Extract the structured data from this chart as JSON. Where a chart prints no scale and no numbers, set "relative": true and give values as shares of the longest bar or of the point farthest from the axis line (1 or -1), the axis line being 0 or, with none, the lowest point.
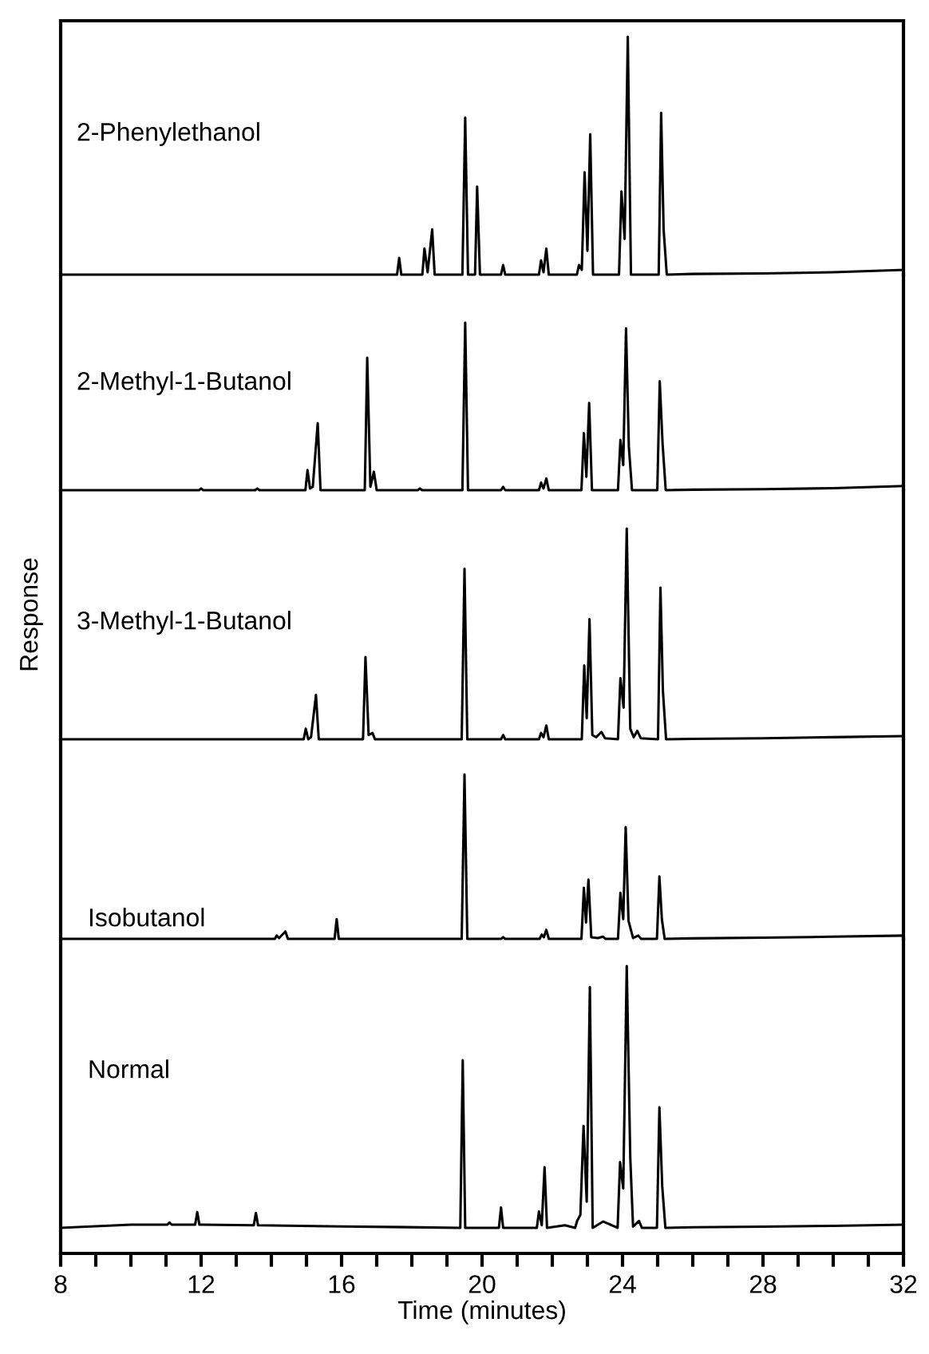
{
  "chart_data": [
    {
      "type": "line",
      "relative": true,
      "xlim": [
        8,
        32
      ],
      "tick_labels": false,
      "marker": "none",
      "line_style": "solid",
      "grid": false,
      "legend": false,
      "series": [
        {
          "name": "2-Phenylethanol",
          "color": "#000000",
          "x": [
            8,
            17.0,
            17.58,
            17.64,
            17.7,
            18.3,
            18.36,
            18.45,
            18.58,
            18.65,
            19.44,
            19.52,
            19.6,
            19.8,
            19.86,
            19.94,
            20.54,
            20.6,
            20.66,
            21.62,
            21.68,
            21.75,
            21.83,
            21.9,
            22.7,
            22.76,
            22.84,
            22.92,
            23.0,
            23.08,
            23.16,
            23.9,
            23.97,
            24.06,
            24.15,
            24.24,
            25.03,
            25.1,
            25.17,
            25.26,
            26,
            28,
            30,
            32
          ],
          "values": [
            0,
            0,
            0,
            0.07,
            0,
            0,
            0.11,
            0.01,
            0.19,
            0,
            0,
            0.66,
            0,
            0,
            0.37,
            0,
            0,
            0.04,
            0,
            0,
            0.06,
            0.01,
            0.11,
            0,
            0,
            0.04,
            0.02,
            0.43,
            0.1,
            0.59,
            0,
            0,
            0.35,
            0.15,
            1.0,
            0,
            0,
            0.68,
            0.19,
            0,
            0.003,
            0.005,
            0.01,
            0.02
          ]
        }
      ]
    },
    {
      "type": "line",
      "relative": true,
      "xlim": [
        8,
        32
      ],
      "tick_labels": false,
      "marker": "none",
      "line_style": "solid",
      "grid": false,
      "legend": false,
      "series": [
        {
          "name": "2-Methyl-1-Butanol",
          "color": "#000000",
          "x": [
            8,
            11.94,
            12.0,
            12.06,
            13.54,
            13.6,
            13.66,
            14.97,
            15.03,
            15.1,
            15.18,
            15.32,
            15.4,
            16.66,
            16.73,
            16.82,
            16.92,
            17.0,
            18.17,
            18.23,
            18.29,
            19.44,
            19.52,
            19.6,
            20.54,
            20.6,
            20.66,
            21.62,
            21.68,
            21.75,
            21.83,
            21.9,
            22.83,
            22.9,
            22.97,
            23.05,
            23.13,
            23.87,
            23.94,
            24.02,
            24.1,
            24.18,
            24.27,
            24.99,
            25.06,
            25.14,
            25.23,
            26,
            28,
            30,
            32
          ],
          "values": [
            0,
            0,
            0.01,
            0,
            0,
            0.01,
            0,
            0,
            0.12,
            0.01,
            0.02,
            0.4,
            0,
            0,
            0.79,
            0.02,
            0.11,
            0,
            0,
            0.01,
            0,
            0,
            1.0,
            0,
            0,
            0.02,
            0,
            0,
            0.045,
            0.01,
            0.07,
            0,
            0,
            0.34,
            0.08,
            0.52,
            0,
            0,
            0.3,
            0.15,
            0.965,
            0.26,
            0,
            0,
            0.65,
            0.28,
            0,
            0.003,
            0.006,
            0.012,
            0.025
          ]
        }
      ]
    },
    {
      "type": "line",
      "relative": true,
      "xlim": [
        8,
        32
      ],
      "tick_labels": false,
      "marker": "none",
      "line_style": "solid",
      "grid": false,
      "legend": false,
      "ylabel": "Response",
      "series": [
        {
          "name": "3-Methyl-1-Butanol",
          "color": "#000000",
          "x": [
            8,
            14.92,
            14.98,
            15.05,
            15.13,
            15.27,
            15.35,
            16.61,
            16.68,
            16.77,
            16.88,
            16.95,
            19.42,
            19.5,
            19.58,
            20.54,
            20.6,
            20.66,
            21.62,
            21.68,
            21.75,
            21.83,
            21.9,
            22.84,
            22.91,
            22.98,
            23.06,
            23.14,
            23.25,
            23.4,
            23.5,
            23.87,
            23.94,
            24.03,
            24.12,
            24.22,
            24.32,
            24.42,
            24.52,
            25.01,
            25.08,
            25.15,
            25.24,
            26,
            28,
            30,
            32
          ],
          "values": [
            0,
            0,
            0.05,
            0,
            0.01,
            0.21,
            0,
            0,
            0.39,
            0.02,
            0.03,
            0,
            0,
            0.81,
            0,
            0,
            0.02,
            0,
            0,
            0.03,
            0.01,
            0.065,
            0,
            0,
            0.35,
            0.1,
            0.57,
            0.02,
            0.01,
            0.035,
            0.005,
            0,
            0.29,
            0.15,
            1.0,
            0.05,
            0.01,
            0.04,
            0.005,
            0,
            0.72,
            0.23,
            0,
            0.002,
            0.005,
            0.01,
            0.015
          ]
        }
      ]
    },
    {
      "type": "line",
      "relative": true,
      "xlim": [
        8,
        32
      ],
      "tick_labels": false,
      "marker": "none",
      "line_style": "solid",
      "grid": false,
      "legend": false,
      "series": [
        {
          "name": "Isobutanol",
          "color": "#000000",
          "x": [
            8,
            14.1,
            14.15,
            14.22,
            14.4,
            14.47,
            15.8,
            15.86,
            15.92,
            19.42,
            19.5,
            19.58,
            20.54,
            20.6,
            20.66,
            21.64,
            21.7,
            21.76,
            21.83,
            21.9,
            22.83,
            22.9,
            22.96,
            23.03,
            23.11,
            23.3,
            23.44,
            23.52,
            23.87,
            23.94,
            24.02,
            24.09,
            24.17,
            24.3,
            24.45,
            24.53,
            24.98,
            25.05,
            25.12,
            25.2,
            26,
            28,
            30,
            32
          ],
          "values": [
            0,
            0,
            0.02,
            0.005,
            0.045,
            0,
            0,
            0.12,
            0,
            0,
            1.0,
            0,
            0,
            0.01,
            0,
            0,
            0.026,
            0.01,
            0.055,
            0,
            0,
            0.31,
            0.1,
            0.36,
            0.01,
            0.005,
            0.013,
            0,
            0,
            0.28,
            0.12,
            0.68,
            0.11,
            0.005,
            0.02,
            0,
            0,
            0.38,
            0.12,
            0,
            0.003,
            0.007,
            0.013,
            0.02
          ]
        }
      ]
    },
    {
      "type": "line",
      "relative": true,
      "xlim": [
        8,
        32
      ],
      "tick_labels": "x",
      "marker": "none",
      "line_style": "solid",
      "grid": false,
      "legend": false,
      "xlabel": "Time (minutes)",
      "xticks": [
        8,
        {
          "value": 9,
          "label": null
        },
        {
          "value": 10,
          "label": null
        },
        {
          "value": 11,
          "label": null
        },
        12,
        {
          "value": 13,
          "label": null
        },
        {
          "value": 14,
          "label": null
        },
        {
          "value": 15,
          "label": null
        },
        16,
        {
          "value": 17,
          "label": null
        },
        {
          "value": 18,
          "label": null
        },
        {
          "value": 19,
          "label": null
        },
        20,
        {
          "value": 21,
          "label": null
        },
        {
          "value": 22,
          "label": null
        },
        {
          "value": 23,
          "label": null
        },
        24,
        {
          "value": 25,
          "label": null
        },
        {
          "value": 26,
          "label": null
        },
        {
          "value": 27,
          "label": null
        },
        28,
        {
          "value": 29,
          "label": null
        },
        {
          "value": 30,
          "label": null
        },
        {
          "value": 31,
          "label": null
        },
        32
      ],
      "series": [
        {
          "name": "Normal",
          "color": "#000000",
          "x": [
            8,
            10,
            11.04,
            11.1,
            11.16,
            11.83,
            11.89,
            11.95,
            13.5,
            13.56,
            13.62,
            16,
            19.38,
            19.45,
            19.52,
            20.48,
            20.54,
            20.6,
            21.56,
            21.62,
            21.7,
            21.78,
            21.85,
            22.36,
            22.65,
            22.71,
            22.8,
            22.89,
            22.98,
            23.07,
            23.15,
            23.45,
            23.86,
            23.93,
            24.02,
            24.12,
            24.22,
            24.3,
            24.47,
            24.55,
            24.98,
            25.05,
            25.13,
            25.22,
            26,
            28,
            30,
            32
          ],
          "values": [
            0.089,
            0.1,
            0.1,
            0.107,
            0.1,
            0.1,
            0.144,
            0.1,
            0.098,
            0.141,
            0.098,
            0.094,
            0.089,
            0.672,
            0.089,
            0.089,
            0.16,
            0.089,
            0.089,
            0.146,
            0.098,
            0.3,
            0.089,
            0.098,
            0.089,
            0.114,
            0.134,
            0.444,
            0.18,
            0.927,
            0.089,
            0.111,
            0.089,
            0.317,
            0.226,
            1.0,
            0.335,
            0.093,
            0.113,
            0.089,
            0.089,
            0.508,
            0.235,
            0.089,
            0.091,
            0.093,
            0.096,
            0.1
          ]
        }
      ]
    }
  ]
}
